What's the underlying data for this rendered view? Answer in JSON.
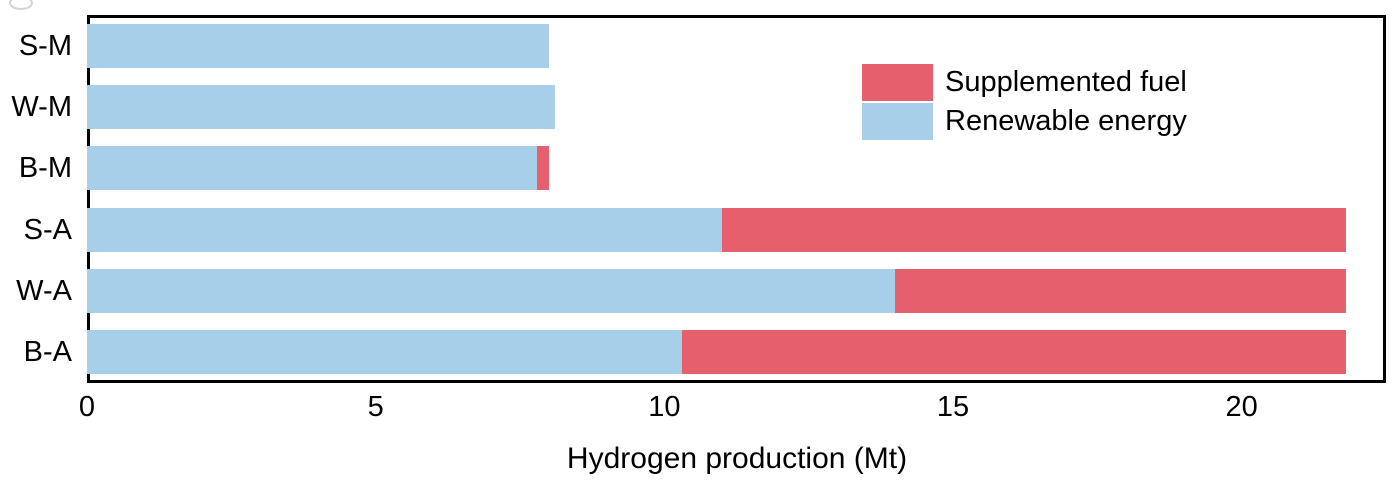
{
  "chart_data": {
    "type": "bar",
    "orientation": "horizontal",
    "stacked": true,
    "title": "",
    "xlabel": "Hydrogen production (Mt)",
    "ylabel": "",
    "xlim": [
      0,
      22.5
    ],
    "xticks": [
      0,
      5,
      10,
      15,
      20
    ],
    "grid": false,
    "categories": [
      "S-M",
      "W-M",
      "B-M",
      "S-A",
      "W-A",
      "B-A"
    ],
    "series": [
      {
        "name": "Renewable energy",
        "color": "#A8CFE9",
        "values": [
          8.0,
          8.1,
          7.8,
          11.0,
          14.0,
          10.3
        ]
      },
      {
        "name": "Supplemented fuel",
        "color": "#E5606C",
        "values": [
          0,
          0,
          0.2,
          10.8,
          7.8,
          11.5
        ]
      }
    ],
    "totals": [
      8.0,
      8.1,
      8.0,
      21.8,
      21.8,
      21.8
    ],
    "legend_position": "upper right",
    "legend": [
      {
        "label": "Supplemented fuel",
        "color": "#E5606C"
      },
      {
        "label": "Renewable energy",
        "color": "#A8CFE9"
      }
    ]
  },
  "colors": {
    "renewable": "#A8CFE9",
    "supplemented": "#E5606C",
    "axis": "#000000",
    "background": "#ffffff"
  }
}
